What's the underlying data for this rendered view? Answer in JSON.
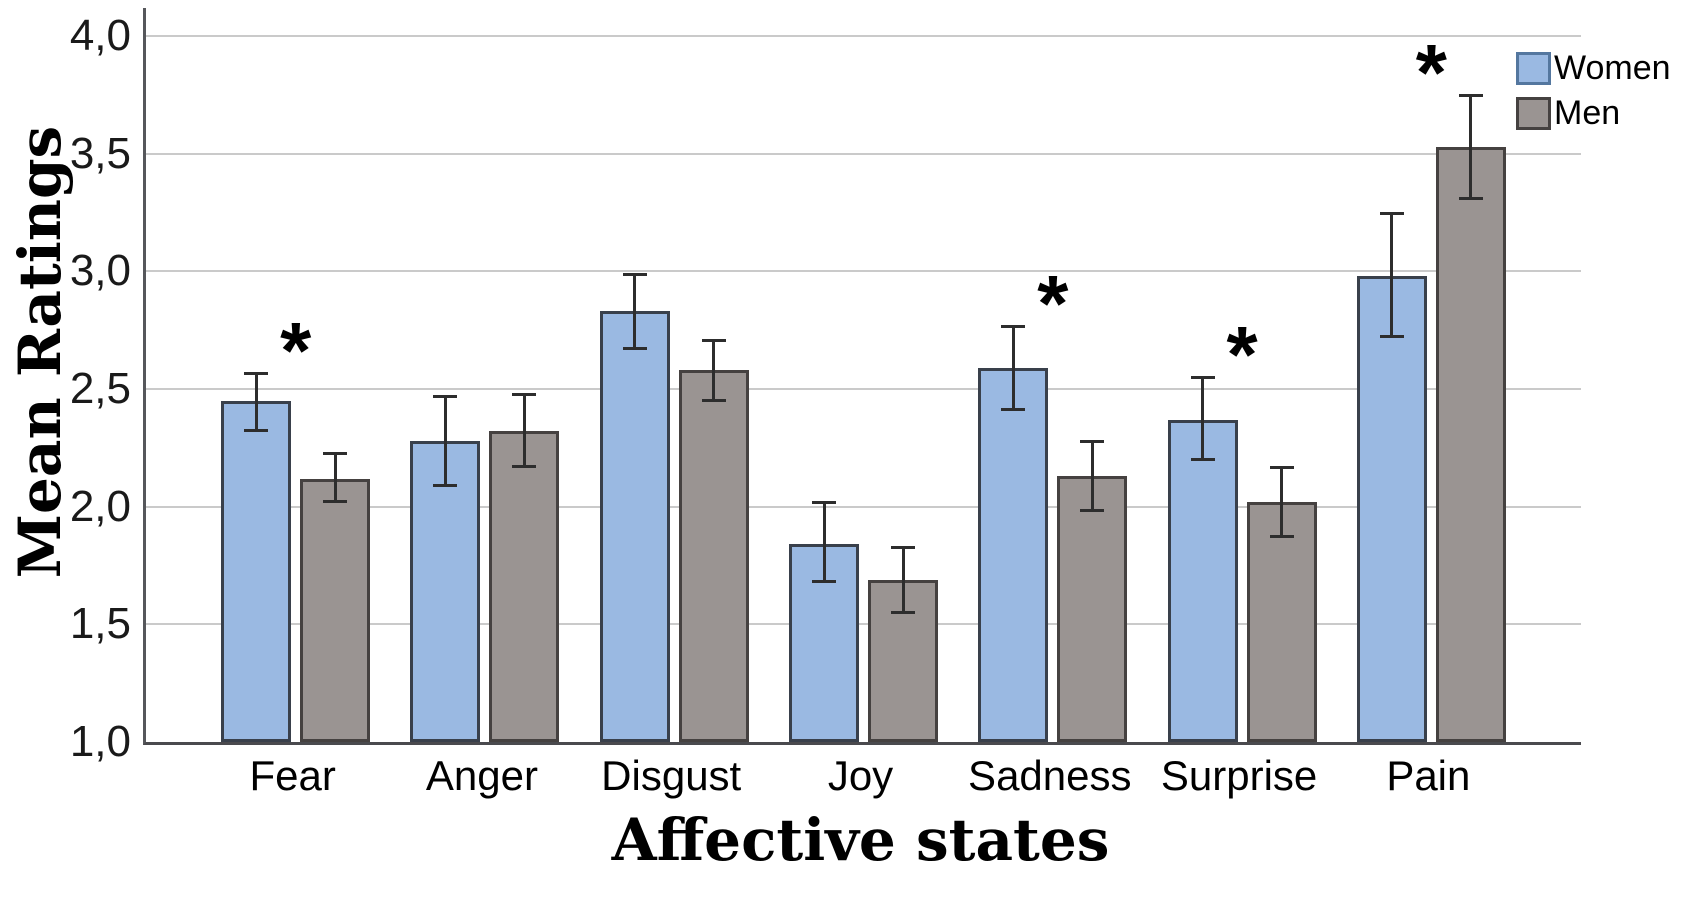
{
  "chart_data": {
    "type": "bar",
    "title": "",
    "xlabel": "Affective states",
    "ylabel": "Mean Ratings",
    "categories": [
      "Fear",
      "Anger",
      "Disgust",
      "Joy",
      "Sadness",
      "Surprise",
      "Pain"
    ],
    "series": [
      {
        "name": "Women",
        "values": [
          2.45,
          2.28,
          2.83,
          1.84,
          2.59,
          2.37,
          2.98
        ],
        "ci_low": [
          2.32,
          2.09,
          2.67,
          1.68,
          2.41,
          2.2,
          2.72
        ],
        "ci_high": [
          2.57,
          2.47,
          2.99,
          2.02,
          2.77,
          2.55,
          3.25
        ]
      },
      {
        "name": "Men",
        "values": [
          2.12,
          2.32,
          2.58,
          1.69,
          2.13,
          2.02,
          3.53
        ],
        "ci_low": [
          2.02,
          2.17,
          2.45,
          1.55,
          1.98,
          1.87,
          3.31
        ],
        "ci_high": [
          2.23,
          2.48,
          2.71,
          1.83,
          2.28,
          2.17,
          3.75
        ]
      }
    ],
    "significant": [
      true,
      false,
      false,
      false,
      true,
      true,
      true
    ],
    "significance_marker": "*",
    "ylim": [
      1.0,
      4.12
    ],
    "ytick_values": [
      1.0,
      1.5,
      2.0,
      2.5,
      3.0,
      3.5,
      4.0
    ],
    "ytick_labels": [
      "1,0",
      "1,5",
      "2,0",
      "2,5",
      "3,0",
      "3,5",
      "4,0"
    ],
    "decimal_separator": ",",
    "grid": true,
    "legend_position": "top-right",
    "colors": {
      "women_fill": "#9ab9e2",
      "women_border": "#39404b",
      "women_legend_border": "#54779f",
      "men_fill": "#9a9492",
      "men_border": "#454140",
      "error_bar": "#2d2d2d",
      "gridline": "#cacaca",
      "axis": "#55565a",
      "text": "#000000"
    }
  }
}
